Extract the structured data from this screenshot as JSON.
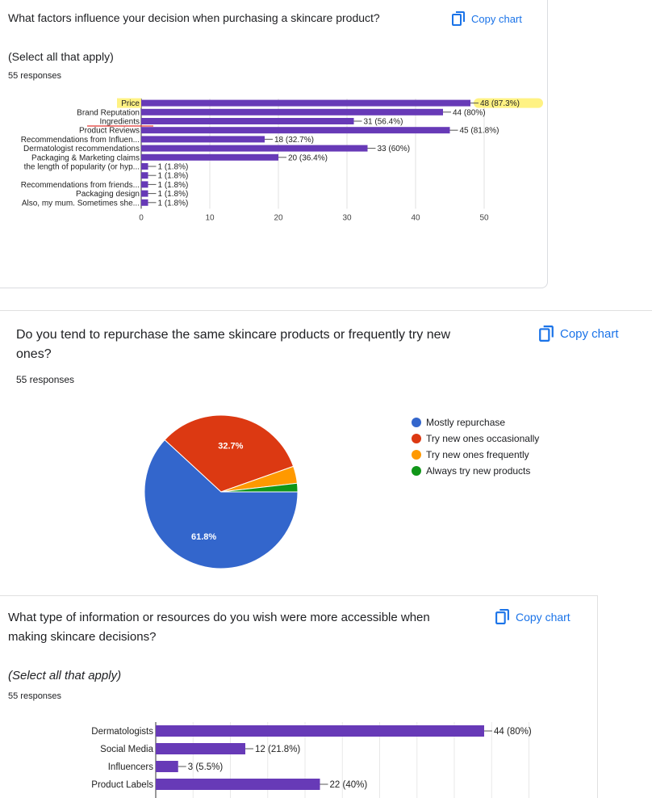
{
  "q1": {
    "title": "What factors influence your decision when purchasing a skincare product?",
    "subtitle": "(Select all that apply)",
    "responses": "55 responses",
    "copy_label": "Copy chart"
  },
  "q2": {
    "title_line1": "Do you tend to repurchase the same skincare products or frequently try new",
    "title_line2": "ones?",
    "responses": "55 responses",
    "copy_label": "Copy chart"
  },
  "q3": {
    "title_line1": "What type of information or resources do you wish were more accessible when",
    "title_line2": "making skincare decisions?",
    "subtitle": "(Select all that apply)",
    "responses": "55 responses",
    "copy_label": "Copy chart"
  },
  "colors": {
    "bar": "#673ab7",
    "blue": "#3366cc",
    "red": "#dc3912",
    "orange": "#ff9900",
    "green": "#109618",
    "link": "#1a73e8",
    "highlight": "#fff176",
    "underline": "#e53935"
  },
  "chart_data": [
    {
      "type": "bar",
      "orientation": "horizontal",
      "categories": [
        "Price",
        "Brand Reputation",
        "Ingredients",
        "Product Reviews",
        "Recommendations from Influen...",
        "Dermatologist recommendations",
        "Packaging & Marketing claims",
        "the length of popularity (or hyp...",
        "",
        "Recommendations from friends...",
        "Packaging design",
        "Also, my mum. Sometimes she..."
      ],
      "values": [
        48,
        44,
        31,
        45,
        18,
        33,
        20,
        1,
        1,
        1,
        1,
        1
      ],
      "value_labels": [
        "48 (87.3%)",
        "44 (80%)",
        "31 (56.4%)",
        "45 (81.8%)",
        "18 (32.7%)",
        "33 (60%)",
        "20 (36.4%)",
        "1 (1.8%)",
        "1 (1.8%)",
        "1 (1.8%)",
        "1 (1.8%)",
        "1 (1.8%)"
      ],
      "xlim": [
        0,
        55
      ],
      "ticks": [
        0,
        10,
        20,
        30,
        40,
        50
      ],
      "grid": true
    },
    {
      "type": "pie",
      "categories": [
        "Mostly repurchase",
        "Try new ones occasionally",
        "Try new ones frequently",
        "Always try new products"
      ],
      "values": [
        61.8,
        32.7,
        3.6,
        1.8
      ],
      "slice_labels": [
        "61.8%",
        "32.7%",
        "",
        ""
      ],
      "legend": "right"
    },
    {
      "type": "bar",
      "orientation": "horizontal",
      "categories": [
        "Dermatologists",
        "Social Media",
        "Influencers",
        "Product Labels"
      ],
      "values": [
        44,
        12,
        3,
        22
      ],
      "value_labels": [
        "44 (80%)",
        "12 (21.8%)",
        "3 (5.5%)",
        "22 (40%)"
      ],
      "xlim": [
        0,
        50
      ],
      "grid": true
    }
  ]
}
